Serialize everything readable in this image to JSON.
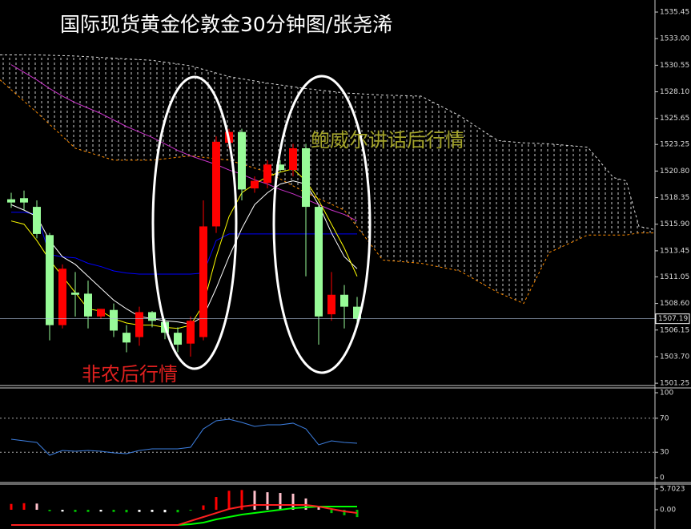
{
  "chart_data": [
    {
      "type": "candlestick",
      "title": "国际现货黄金伦敦金30分钟图/张尧浠",
      "annotations": [
        {
          "text": "鲍威尔讲话后行情",
          "color": "#a3a32a"
        },
        {
          "text": "非农后行情",
          "color": "#e0201f"
        }
      ],
      "xlim": [
        -0.875,
        50.25
      ],
      "ylim": [
        1501.11,
        1536.56
      ],
      "yticks": [
        1535.45,
        {
          "value": 1533,
          "label": "1533.00"
        },
        1530.55,
        {
          "value": 1528.1,
          "label": "1528.10"
        },
        1525.65,
        1523.25,
        {
          "value": 1520.8,
          "label": "1520.80"
        },
        1518.35,
        {
          "value": 1515.9,
          "label": "1515.90"
        },
        1513.45,
        1511.05,
        {
          "value": 1508.6,
          "label": "1508.60"
        },
        1506.15,
        {
          "value": 1503.7,
          "label": "1503.70"
        },
        1501.25
      ],
      "current_price": 1507.19,
      "up_color": "#ff0000",
      "down_color": "#98fb98",
      "open": [
        1518.2,
        1518.3,
        1517.5,
        1514.9,
        1506.6,
        1509.6,
        1509.5,
        1507.4,
        1508.0,
        1505.9,
        1505.5,
        1507.8,
        1506.9,
        1505.9,
        1504.9,
        1505.5,
        1515.7,
        1523.4,
        1524.4,
        1519.2,
        1519.7,
        1521.4,
        1520.9,
        1522.9,
        1517.5,
        1507.6,
        1509.4,
        1508.3
      ],
      "high": [
        1518.8,
        1519.0,
        1518.1,
        1515.1,
        1512.2,
        1511.5,
        1510.7,
        1508.1,
        1508.6,
        1506.6,
        1508.3,
        1507.9,
        1507.2,
        1506.4,
        1507.4,
        1518.1,
        1524.0,
        1524.7,
        1524.7,
        1520.3,
        1521.8,
        1521.8,
        1523.3,
        1523.3,
        1517.7,
        1511.5,
        1510.3,
        1509.2
      ],
      "low": [
        1517.4,
        1517.2,
        1514.6,
        1505.2,
        1506.3,
        1507.4,
        1506.3,
        1507.2,
        1505.5,
        1504.1,
        1504.7,
        1506.4,
        1505.3,
        1504.1,
        1503.7,
        1505.2,
        1515.1,
        1522.9,
        1518.1,
        1518.8,
        1519.2,
        1520.7,
        1520.3,
        1511.1,
        1504.8,
        1507.0,
        1506.3,
        1506.6
      ],
      "close": [
        1517.9,
        1517.9,
        1515.0,
        1506.6,
        1511.8,
        1509.4,
        1507.4,
        1508.1,
        1506.1,
        1505.0,
        1507.8,
        1507.0,
        1505.9,
        1504.8,
        1507.0,
        1515.7,
        1523.5,
        1524.4,
        1519.1,
        1519.9,
        1521.4,
        1520.9,
        1522.9,
        1517.5,
        1507.4,
        1509.4,
        1508.3,
        1507.2
      ],
      "cloud": {
        "color": "#dddddd",
        "lower_color": "#ff8c00",
        "x": [
          -0.875,
          2,
          5,
          8,
          11,
          14,
          17,
          20,
          23,
          26,
          29,
          32,
          35,
          38,
          40,
          42,
          45,
          47,
          48,
          49,
          50.25
        ],
        "upper": [
          1531.5,
          1531.5,
          1531.4,
          1531.2,
          1531.0,
          1530.5,
          1529.5,
          1528.9,
          1528.4,
          1528.0,
          1527.8,
          1527.7,
          1525.9,
          1523.6,
          1523.4,
          1523.3,
          1523.0,
          1520.2,
          1519.9,
          1515.7,
          1515.4
        ],
        "lower": [
          1529.2,
          1526.2,
          1522.9,
          1521.8,
          1521.8,
          1522.2,
          1521.8,
          1520.7,
          1518.8,
          1517.2,
          1512.6,
          1512.3,
          1511.6,
          1509.6,
          1508.6,
          1513.3,
          1514.9,
          1514.9,
          1514.9,
          1515.1,
          1515.1
        ]
      },
      "overlays": [
        {
          "color": "#cc33cc",
          "values": [
            1530.6,
            1529.9,
            1529.2,
            1528.4,
            1527.7,
            1527.1,
            1526.6,
            1526.1,
            1525.5,
            1524.9,
            1524.4,
            1523.9,
            1523.3,
            1522.7,
            1522.2,
            1521.8,
            1521.4,
            1520.9,
            1520.5,
            1520.0,
            1519.6,
            1519.1,
            1518.7,
            1518.2,
            1517.7,
            1517.2,
            1516.8,
            1516.2
          ]
        },
        {
          "color": "#0000ff",
          "values": [
            1517.0,
            1517.0,
            1516.8,
            1513.1,
            1512.9,
            1512.8,
            1512.3,
            1512.0,
            1511.6,
            1511.4,
            1511.3,
            1511.3,
            1511.3,
            1511.3,
            1511.3,
            1511.4,
            1514.4,
            1515.0,
            1515.0,
            1515.0,
            1515.0,
            1515.0,
            1515.0,
            1515.0,
            1515.0,
            1515.0,
            1515.0,
            1515.0
          ]
        },
        {
          "color": "#ffffff",
          "values": [
            1517.7,
            1517.2,
            1516.6,
            1514.4,
            1512.9,
            1512.2,
            1511.1,
            1510.0,
            1508.9,
            1508.1,
            1507.4,
            1507.2,
            1507.0,
            1506.9,
            1506.7,
            1507.4,
            1510.0,
            1512.9,
            1515.5,
            1517.7,
            1518.8,
            1519.6,
            1519.9,
            1519.6,
            1517.7,
            1515.1,
            1512.9,
            1511.8
          ]
        },
        {
          "color": "#ffff00",
          "values": [
            1516.2,
            1515.9,
            1514.4,
            1512.6,
            1511.1,
            1509.6,
            1508.1,
            1507.9,
            1507.2,
            1506.8,
            1506.6,
            1506.6,
            1506.4,
            1506.3,
            1506.6,
            1508.5,
            1512.9,
            1516.6,
            1518.8,
            1519.6,
            1520.3,
            1520.7,
            1521.0,
            1519.9,
            1518.1,
            1515.9,
            1513.7,
            1511.1
          ]
        }
      ]
    },
    {
      "type": "line",
      "xlim": [
        -0.875,
        50.25
      ],
      "ylim": [
        -5.66,
        105.66
      ],
      "yticks": [
        0,
        30,
        70,
        100
      ],
      "levels": [
        30,
        70
      ],
      "color": "#3d7fe0",
      "values": [
        45.3,
        43.4,
        41.5,
        26.4,
        32.1,
        31.1,
        32.1,
        31.1,
        29.2,
        28.3,
        32.1,
        34.0,
        34.0,
        34.0,
        35.8,
        57.5,
        67.0,
        68.9,
        65.1,
        60.4,
        62.3,
        62.3,
        64.2,
        57.5,
        38.7,
        43.4,
        41.5,
        40.6
      ]
    },
    {
      "type": "bar",
      "xlim": [
        -0.875,
        50.25
      ],
      "ylim": [
        -5.26,
        7.02
      ],
      "yticks": [
        5.7023,
        {
          "value": 0,
          "label": "0.00"
        }
      ],
      "values": [
        1.6,
        1.8,
        1.7,
        -0.4,
        -0.5,
        -0.6,
        -0.6,
        -0.5,
        -0.6,
        -0.7,
        -0.6,
        -0.6,
        -0.7,
        -0.7,
        -0.2,
        1.2,
        3.5,
        5.2,
        5.4,
        5.2,
        4.8,
        4.6,
        4.4,
        3.1,
        1.0,
        -0.9,
        -1.5,
        -2.0
      ],
      "colors": [
        "#ff0000",
        "#ff0000",
        "#ffc0cb",
        "#00c000",
        "#ffffff",
        "#00c000",
        "#00c000",
        "#ffffff",
        "#00c000",
        "#00c000",
        "#ffffff",
        "#ffffff",
        "#ffffff",
        "#00c000",
        "#00c000",
        "#ff0000",
        "#ff0000",
        "#ff0000",
        "#ff0000",
        "#ffc0cb",
        "#ffc0cb",
        "#ffc0cb",
        "#ffc0cb",
        "#ffc0cb",
        "#ffc0cb",
        "#00c000",
        "#00c000",
        "#00c000"
      ],
      "lines": [
        {
          "color": "#00ff00",
          "values": [
            -4.17,
            -4.17,
            -4.17,
            -4.17,
            -4.17,
            -4.17,
            -4.17,
            -4.17,
            -4.17,
            -4.17,
            -4.17,
            -4.17,
            -4.17,
            -4.17,
            -3.95,
            -3.51,
            -2.63,
            -1.97,
            -1.32,
            -0.88,
            -0.44,
            0,
            0.44,
            0.66,
            0.88,
            0.88,
            0.88,
            0.88
          ]
        },
        {
          "color": "#ff2020",
          "values": [
            -4.17,
            -4.17,
            -4.17,
            -4.17,
            -4.17,
            -4.17,
            -4.17,
            -4.17,
            -4.17,
            -4.17,
            -4.17,
            -4.17,
            -4.17,
            -4.17,
            -3.07,
            -1.97,
            -0.88,
            0.22,
            0.88,
            1.32,
            1.32,
            1.32,
            1.32,
            1.32,
            0.88,
            0.22,
            -0.44,
            -0.88
          ]
        }
      ]
    }
  ]
}
